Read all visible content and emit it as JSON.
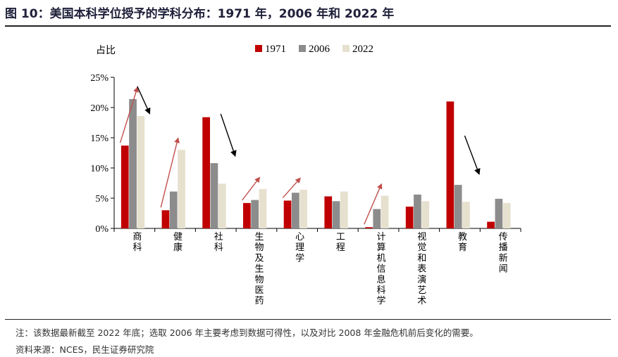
{
  "header": {
    "title": "图 10：美国本科学位授予的学科分布：1971 年，2006 年和 2022 年"
  },
  "footer": {
    "note": "注：该数据最新截至 2022 年底；选取 2006 年主要考虑到数据可得性，以及对比 2008 年金融危机前后变化的需要。",
    "source": "资料来源：NCES，民生证券研究院"
  },
  "chart_data": {
    "type": "bar",
    "ylabel": "占比",
    "ylim": [
      0,
      25
    ],
    "yticks": [
      "0%",
      "5%",
      "10%",
      "15%",
      "20%",
      "25%"
    ],
    "categories": [
      "商科",
      "健康",
      "社科",
      "生物及生物医药",
      "心理学",
      "工程",
      "计算机信息科学",
      "视觉和表演艺术",
      "教育",
      "传播新闻"
    ],
    "series": [
      {
        "name": "1971",
        "color": "#c00000",
        "values": [
          13.7,
          3.0,
          18.4,
          4.2,
          4.6,
          5.3,
          0.2,
          3.6,
          21.0,
          1.1
        ]
      },
      {
        "name": "2006",
        "color": "#8c8c8c",
        "values": [
          21.4,
          6.1,
          10.8,
          4.7,
          5.9,
          4.5,
          3.2,
          5.6,
          7.2,
          4.9
        ]
      },
      {
        "name": "2022",
        "color": "#e6e0ce",
        "values": [
          18.6,
          13.0,
          7.4,
          6.5,
          6.4,
          6.1,
          5.4,
          4.5,
          4.4,
          4.2
        ]
      }
    ],
    "legend_position": "top",
    "grid": false,
    "annotations": {
      "up_arrow_color": "#c0504d",
      "down_arrow_color": "#000000",
      "up_arrows_categories": [
        "商科",
        "健康",
        "生物及生物医药",
        "心理学",
        "计算机信息科学"
      ],
      "down_arrows_categories": [
        "商科",
        "社科",
        "教育"
      ]
    }
  }
}
